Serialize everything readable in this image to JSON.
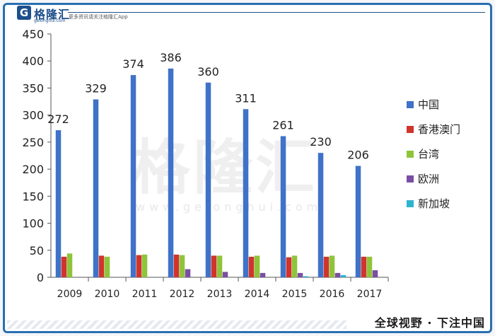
{
  "header": {
    "brand": "格隆汇",
    "brand_url": "gelonghui.com",
    "tagline": "更多资讯请关注格隆汇App"
  },
  "footer": {
    "text": "全球视野 · 下注中国"
  },
  "watermark": {
    "text": "格隆汇",
    "url": "www.gelonghui.com"
  },
  "colors": {
    "china": "#3f72c8",
    "hkmacau": "#d0342c",
    "taiwan": "#8fc43a",
    "europe": "#7b4ea3",
    "singapore": "#2eb3cf"
  },
  "chart_data": {
    "type": "bar",
    "categories": [
      "2009",
      "2010",
      "2011",
      "2012",
      "2013",
      "2014",
      "2015",
      "2016",
      "2017"
    ],
    "ylim": [
      0,
      450
    ],
    "yticks": [
      0,
      50,
      100,
      150,
      200,
      250,
      300,
      350,
      400,
      450
    ],
    "grid": false,
    "legend": "right",
    "series": [
      {
        "name": "中国",
        "values": [
          272,
          329,
          374,
          386,
          360,
          311,
          261,
          230,
          206
        ],
        "color": "#3f72c8",
        "show_labels": true
      },
      {
        "name": "香港澳门",
        "values": [
          38,
          40,
          41,
          42,
          40,
          38,
          37,
          38,
          38
        ],
        "color": "#d0342c"
      },
      {
        "name": "台湾",
        "values": [
          44,
          38,
          42,
          41,
          40,
          40,
          40,
          40,
          38
        ],
        "color": "#8fc43a"
      },
      {
        "name": "欧洲",
        "values": [
          0,
          0,
          0,
          15,
          10,
          8,
          8,
          8,
          13
        ],
        "color": "#7b4ea3"
      },
      {
        "name": "新加坡",
        "values": [
          0,
          0,
          0,
          0,
          0,
          0,
          2,
          4,
          0
        ],
        "color": "#2eb3cf"
      }
    ]
  }
}
